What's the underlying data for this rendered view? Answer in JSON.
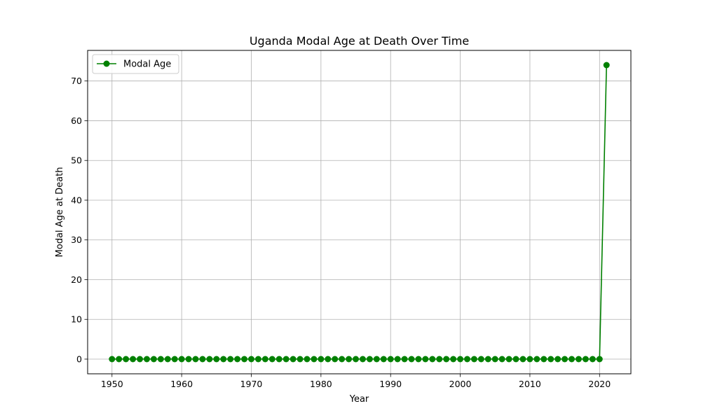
{
  "chart_data": {
    "type": "line",
    "title": "Uganda Modal Age at Death Over Time",
    "xlabel": "Year",
    "ylabel": "Modal Age at Death",
    "xlim": [
      1946.5,
      2024.5
    ],
    "ylim": [
      -3.7,
      77.7
    ],
    "x_ticks": [
      1950,
      1960,
      1970,
      1980,
      1990,
      2000,
      2010,
      2020
    ],
    "y_ticks": [
      0,
      10,
      20,
      30,
      40,
      50,
      60,
      70
    ],
    "grid": true,
    "legend_position": "top-left",
    "series": [
      {
        "name": "Modal Age",
        "color": "#008000",
        "marker": "circle",
        "x": [
          1950,
          1951,
          1952,
          1953,
          1954,
          1955,
          1956,
          1957,
          1958,
          1959,
          1960,
          1961,
          1962,
          1963,
          1964,
          1965,
          1966,
          1967,
          1968,
          1969,
          1970,
          1971,
          1972,
          1973,
          1974,
          1975,
          1976,
          1977,
          1978,
          1979,
          1980,
          1981,
          1982,
          1983,
          1984,
          1985,
          1986,
          1987,
          1988,
          1989,
          1990,
          1991,
          1992,
          1993,
          1994,
          1995,
          1996,
          1997,
          1998,
          1999,
          2000,
          2001,
          2002,
          2003,
          2004,
          2005,
          2006,
          2007,
          2008,
          2009,
          2010,
          2011,
          2012,
          2013,
          2014,
          2015,
          2016,
          2017,
          2018,
          2019,
          2020,
          2021
        ],
        "y": [
          0,
          0,
          0,
          0,
          0,
          0,
          0,
          0,
          0,
          0,
          0,
          0,
          0,
          0,
          0,
          0,
          0,
          0,
          0,
          0,
          0,
          0,
          0,
          0,
          0,
          0,
          0,
          0,
          0,
          0,
          0,
          0,
          0,
          0,
          0,
          0,
          0,
          0,
          0,
          0,
          0,
          0,
          0,
          0,
          0,
          0,
          0,
          0,
          0,
          0,
          0,
          0,
          0,
          0,
          0,
          0,
          0,
          0,
          0,
          0,
          0,
          0,
          0,
          0,
          0,
          0,
          0,
          0,
          0,
          0,
          0,
          74
        ]
      }
    ]
  }
}
